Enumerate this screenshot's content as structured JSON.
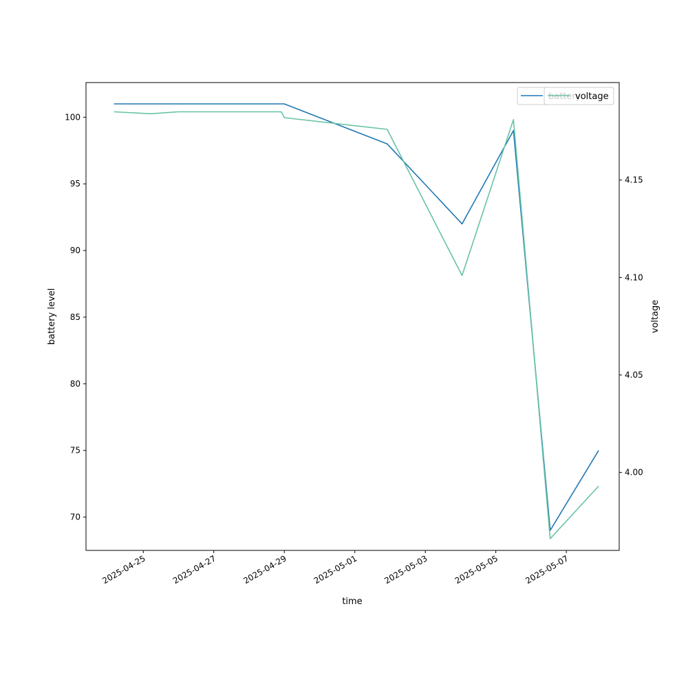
{
  "chart_data": {
    "type": "line",
    "title": "",
    "xlabel": "time",
    "ylabel": "battery level",
    "y2label": "voltage",
    "x": [
      "2025-04-24 04:00",
      "2025-04-25 05:00",
      "2025-04-26 00:00",
      "2025-04-28 22:00",
      "2025-04-29 00:00",
      "2025-05-01 22:00",
      "2025-05-04 01:00",
      "2025-05-05 12:00",
      "2025-05-06 13:00",
      "2025-05-07 22:00"
    ],
    "xticks": [
      "2025-04-25",
      "2025-04-27",
      "2025-04-29",
      "2025-05-01",
      "2025-05-03",
      "2025-05-05",
      "2025-05-07"
    ],
    "xlim": [
      "2025-04-23 09:00",
      "2025-05-08 12:00"
    ],
    "ylim": [
      67.5,
      102.6
    ],
    "y2lim": [
      3.96,
      4.2
    ],
    "yticks": [
      "70",
      "75",
      "80",
      "85",
      "90",
      "95",
      "100"
    ],
    "y2ticks": [
      "4.00",
      "4.05",
      "4.10",
      "4.15"
    ],
    "legend_position": "top-right",
    "series": [
      {
        "name": "battery",
        "axis": "left",
        "color": "#1f77b4",
        "x": [
          "2025-04-24 04:00",
          "2025-04-26 00:00",
          "2025-04-29 00:00",
          "2025-05-01 22:00",
          "2025-05-04 01:00",
          "2025-05-05 12:00",
          "2025-05-06 13:00",
          "2025-05-07 22:00"
        ],
        "values": [
          101,
          101,
          101,
          98,
          92,
          99,
          69,
          75
        ]
      },
      {
        "name": "voltage",
        "axis": "right",
        "color": "#66c2a5",
        "x": [
          "2025-04-24 04:00",
          "2025-04-25 05:00",
          "2025-04-26 00:00",
          "2025-04-28 22:00",
          "2025-04-29 00:00",
          "2025-05-01 22:00",
          "2025-05-04 01:00",
          "2025-05-05 12:00",
          "2025-05-06 13:00",
          "2025-05-07 22:00"
        ],
        "values": [
          4.185,
          4.184,
          4.185,
          4.185,
          4.182,
          4.176,
          4.101,
          4.181,
          3.966,
          3.993
        ]
      }
    ]
  }
}
